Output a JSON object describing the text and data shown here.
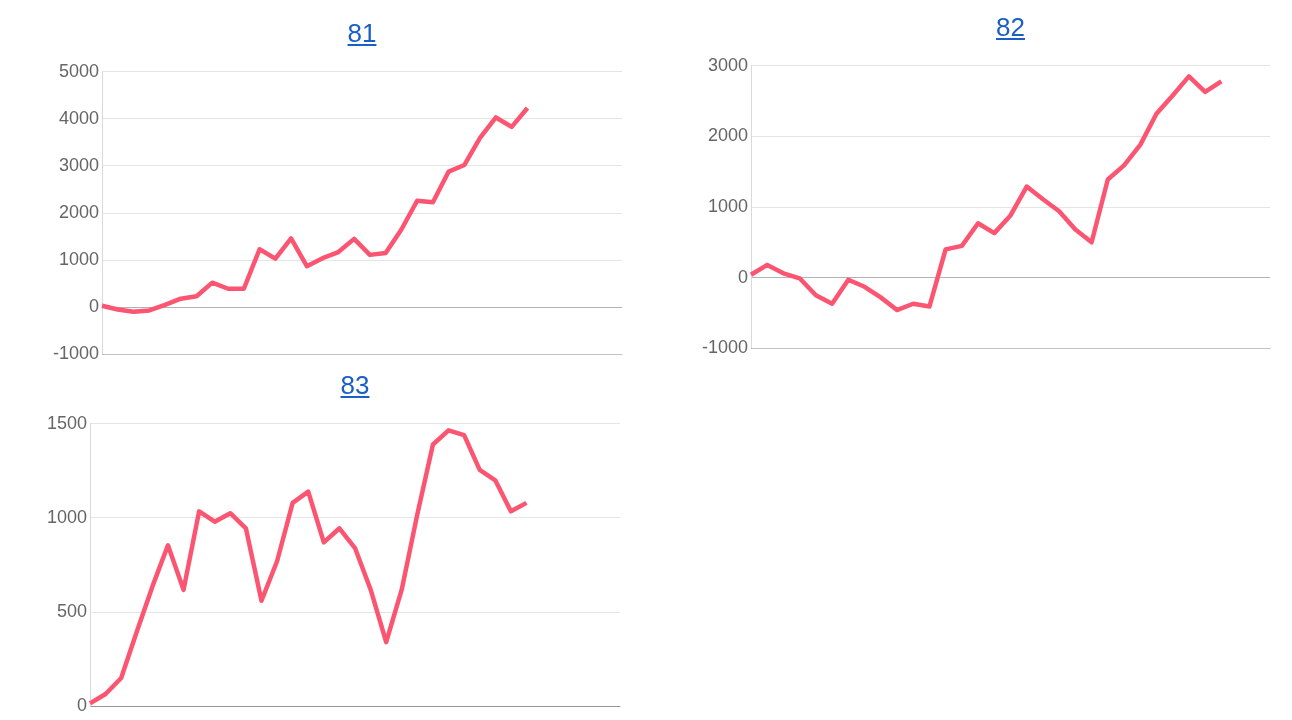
{
  "chart_data": [
    {
      "type": "line",
      "title": "81",
      "categories": [
        null,
        null,
        null,
        null,
        null,
        null,
        null,
        null,
        null,
        null,
        null,
        null,
        null,
        null,
        null,
        null,
        null,
        null,
        null,
        null,
        null,
        null,
        null,
        null,
        null,
        null,
        null,
        null,
        null,
        null,
        null,
        null,
        null,
        null
      ],
      "values": [
        30,
        -50,
        -100,
        -70,
        50,
        180,
        230,
        520,
        390,
        390,
        1230,
        1030,
        1460,
        870,
        1040,
        1170,
        1450,
        1110,
        1150,
        1650,
        2260,
        2230,
        2880,
        3020,
        3600,
        4030,
        3830,
        4230,
        null,
        null,
        null,
        null,
        null,
        null
      ],
      "color": "#fb5571",
      "ylim": [
        -1000,
        5000
      ],
      "yticks": [
        -1000,
        0,
        1000,
        2000,
        3000,
        4000,
        5000
      ],
      "grid": "y",
      "tick_labels": "y",
      "marker": "none"
    },
    {
      "type": "line",
      "title": "82",
      "categories": [
        null,
        null,
        null,
        null,
        null,
        null,
        null,
        null,
        null,
        null,
        null,
        null,
        null,
        null,
        null,
        null,
        null,
        null,
        null,
        null,
        null,
        null,
        null,
        null,
        null,
        null,
        null,
        null,
        null,
        null,
        null,
        null,
        null
      ],
      "values": [
        40,
        180,
        60,
        -10,
        -250,
        -370,
        -30,
        -130,
        -280,
        -460,
        -370,
        -410,
        400,
        450,
        770,
        630,
        880,
        1290,
        1110,
        940,
        680,
        500,
        1390,
        1590,
        1880,
        2320,
        2580,
        2850,
        2630,
        2780,
        null,
        null,
        null
      ],
      "color": "#fb5571",
      "ylim": [
        -1000,
        3000
      ],
      "yticks": [
        -1000,
        0,
        1000,
        2000,
        3000
      ],
      "grid": "y",
      "tick_labels": "y",
      "marker": "none"
    },
    {
      "type": "line",
      "title": "83",
      "categories": [
        null,
        null,
        null,
        null,
        null,
        null,
        null,
        null,
        null,
        null,
        null,
        null,
        null,
        null,
        null,
        null,
        null,
        null,
        null,
        null,
        null,
        null,
        null,
        null,
        null,
        null,
        null,
        null,
        null,
        null,
        null,
        null,
        null,
        null,
        null
      ],
      "values": [
        15,
        65,
        150,
        395,
        635,
        855,
        618,
        1035,
        980,
        1025,
        945,
        560,
        770,
        1080,
        1140,
        870,
        945,
        840,
        620,
        340,
        620,
        1020,
        1390,
        1465,
        1440,
        1255,
        1200,
        1035,
        1080,
        null,
        null,
        null,
        null,
        null,
        null
      ],
      "color": "#fb5571",
      "ylim": [
        0,
        1500
      ],
      "yticks": [
        0,
        500,
        1000,
        1500
      ],
      "grid": "y",
      "tick_labels": "y",
      "marker": "none"
    }
  ]
}
